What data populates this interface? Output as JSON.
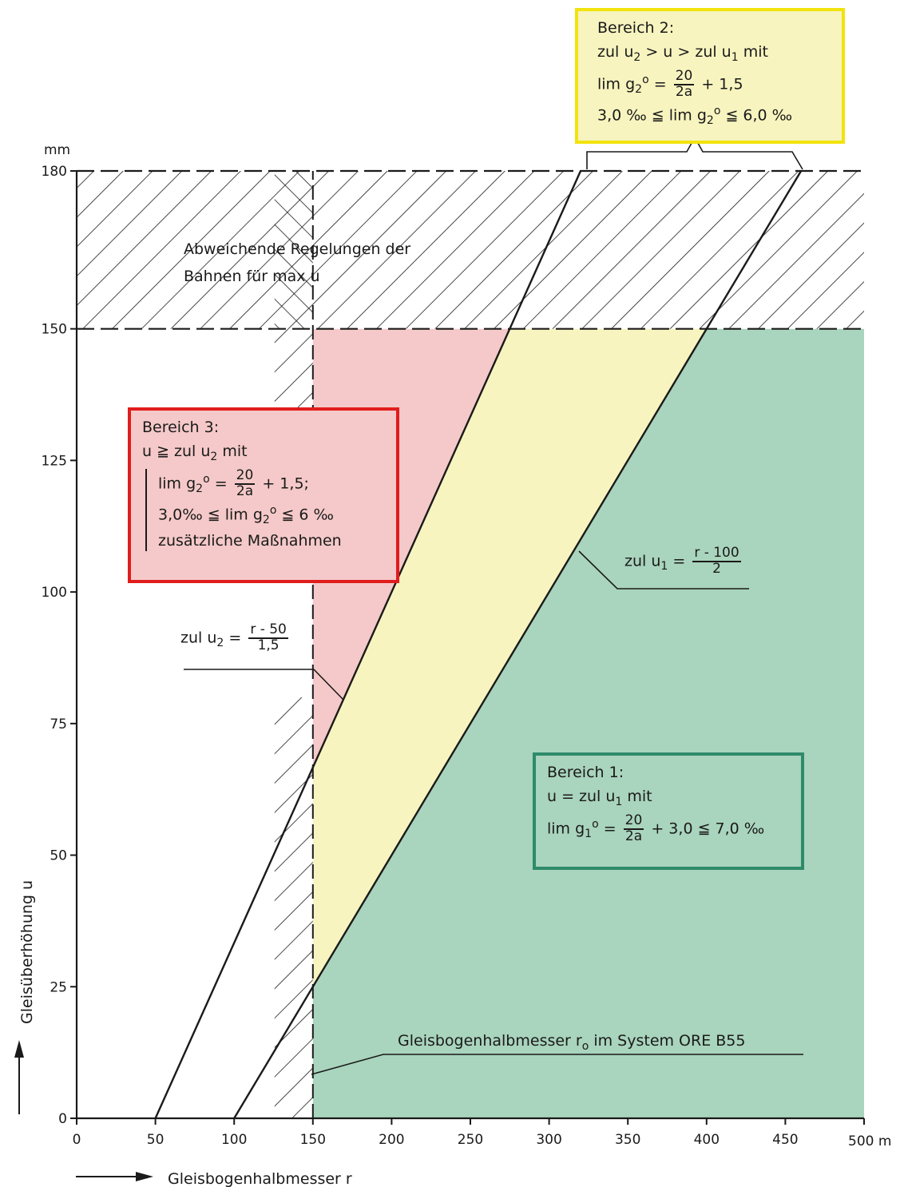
{
  "colors": {
    "zone1": "#a9d4bd",
    "zone2": "#f7f4bf",
    "zone3": "#f5c9c9",
    "box1_border": "#2e8b6a",
    "box2_border": "#f2e30c",
    "box3_border": "#e01c1c",
    "ink": "#1a1a1a"
  },
  "chart_data": {
    "type": "line",
    "xlabel": "Gleisbogenhalbmesser r",
    "ylabel": "Gleisüberhöhung u",
    "x_unit": "m",
    "y_unit": "mm",
    "xlim": [
      0,
      500
    ],
    "ylim": [
      0,
      180
    ],
    "x_ticks": [
      0,
      50,
      100,
      150,
      200,
      250,
      300,
      350,
      400,
      450,
      500
    ],
    "y_ticks": [
      0,
      25,
      50,
      75,
      100,
      125,
      150,
      180
    ],
    "grid": false,
    "series": [
      {
        "name": "zul u2 = (r-50)/1,5",
        "x": [
          50,
          320
        ],
        "y": [
          0,
          180
        ]
      },
      {
        "name": "zul u1 = (r-100)/2",
        "x": [
          100,
          460
        ],
        "y": [
          0,
          180
        ]
      },
      {
        "name": "",
        "x": [
          150,
          150
        ],
        "y": [
          0,
          180
        ]
      }
    ],
    "regions": [
      {
        "name": "Bereich 1",
        "color": "#a9d4bd"
      },
      {
        "name": "Bereich 2",
        "color": "#f7f4bf"
      },
      {
        "name": "Bereich 3",
        "color": "#f5c9c9"
      },
      {
        "name": "Abweichende Regelungen der Bahnen für max u",
        "y_range": [
          150,
          180
        ]
      }
    ],
    "annotations": {
      "hatch_text_line1": "Abweichende Regelungen der",
      "hatch_text_line2": "Bahnen für max u",
      "u2_label_prefix": "zul u",
      "u2_label_sub": "2",
      "u2_frac_num": "r - 50",
      "u2_frac_den": "1,5",
      "u1_label_prefix": "zul u",
      "u1_label_sub": "1",
      "u1_frac_num": "r - 100",
      "u1_frac_den": "2",
      "ro_label_a": "Gleisbogenhalbmesser r",
      "ro_label_sub": "o",
      "ro_label_b": " im System ORE B55"
    }
  },
  "axis_text": {
    "y_unit_label": "mm",
    "x_unit_label": "500 m"
  },
  "bereich2": {
    "title": "Bereich 2:",
    "r1_a": "zul u",
    "r1_sub1": "2",
    "r1_b": " > u > zul u",
    "r1_sub2": "1",
    "r1_c": " mit",
    "r2_a": "lim g",
    "r2_sub": "2",
    "r2_sup": "o",
    "r2_eq": " = ",
    "r2_num": "20",
    "r2_den": "2a",
    "r2_tail": " + 1,5",
    "r3_a": "3,0 ‰ ≦ lim g",
    "r3_sub": "2",
    "r3_sup": "o",
    "r3_tail": " ≦ 6,0 ‰"
  },
  "bereich3": {
    "title": "Bereich 3:",
    "r1_a": "u ≧ zul u",
    "r1_sub": "2",
    "r1_b": " mit",
    "r2_a": "lim g",
    "r2_sub": "2",
    "r2_sup": "o",
    "r2_eq": " = ",
    "r2_num": "20",
    "r2_den": "2a",
    "r2_tail": " + 1,5;",
    "r3_a": "3,0‰ ≦ lim g",
    "r3_sub": "2",
    "r3_sup": "o",
    "r3_tail": " ≦ 6 ‰",
    "r4": "zusätzliche Maßnahmen"
  },
  "bereich1": {
    "title": "Bereich 1:",
    "r1_a": "u = zul u",
    "r1_sub": "1",
    "r1_b": " mit",
    "r2_a": "lim g",
    "r2_sub": "1",
    "r2_sup": "o",
    "r2_eq": " = ",
    "r2_num": "20",
    "r2_den": "2a",
    "r2_tail": " + 3,0 ≦ 7,0 ‰"
  }
}
